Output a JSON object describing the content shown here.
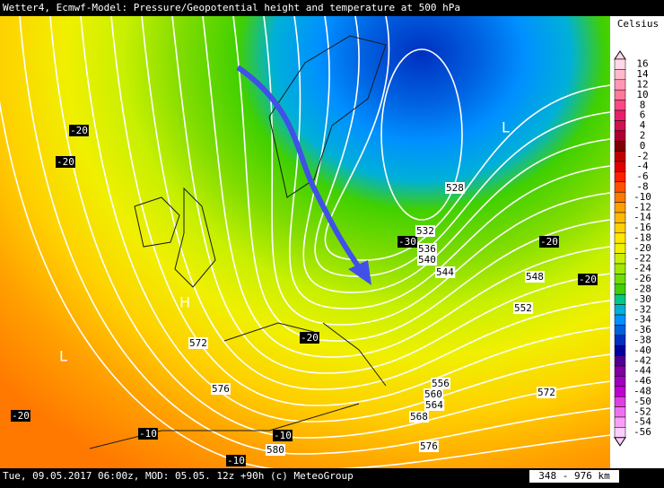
{
  "header": {
    "title": "Wetter4, Ecmwf-Model: Pressure/Geopotential height and temperature at 500 hPa"
  },
  "legend": {
    "title": "Celsius",
    "entries": [
      {
        "label": 16,
        "color": "#ffd8e8"
      },
      {
        "label": 14,
        "color": "#ffb8cc"
      },
      {
        "label": 12,
        "color": "#ff98b4"
      },
      {
        "label": 10,
        "color": "#ff789c"
      },
      {
        "label": 8,
        "color": "#ff4884"
      },
      {
        "label": 6,
        "color": "#e8206a"
      },
      {
        "label": 4,
        "color": "#d01050"
      },
      {
        "label": 2,
        "color": "#b00030"
      },
      {
        "label": 0,
        "color": "#800000"
      },
      {
        "label": -2,
        "color": "#c00000"
      },
      {
        "label": -4,
        "color": "#e00000"
      },
      {
        "label": -6,
        "color": "#ff2000"
      },
      {
        "label": -8,
        "color": "#ff5000"
      },
      {
        "label": -10,
        "color": "#ff7800"
      },
      {
        "label": -12,
        "color": "#ffa000"
      },
      {
        "label": -14,
        "color": "#ffb800"
      },
      {
        "label": -16,
        "color": "#ffd000"
      },
      {
        "label": -18,
        "color": "#ffe800"
      },
      {
        "label": -20,
        "color": "#f0f000"
      },
      {
        "label": -22,
        "color": "#c8f000"
      },
      {
        "label": -24,
        "color": "#a0e800"
      },
      {
        "label": -26,
        "color": "#70dc00"
      },
      {
        "label": -28,
        "color": "#40d000"
      },
      {
        "label": -30,
        "color": "#00c880"
      },
      {
        "label": -32,
        "color": "#00b0d8"
      },
      {
        "label": -34,
        "color": "#0090ff"
      },
      {
        "label": -36,
        "color": "#0060e0"
      },
      {
        "label": -38,
        "color": "#0030c0"
      },
      {
        "label": -40,
        "color": "#0000a0"
      },
      {
        "label": -42,
        "color": "#500090"
      },
      {
        "label": -44,
        "color": "#8000a0"
      },
      {
        "label": -46,
        "color": "#a000c0"
      },
      {
        "label": -48,
        "color": "#c000d0"
      },
      {
        "label": -50,
        "color": "#e040e0"
      },
      {
        "label": -52,
        "color": "#f070f0"
      },
      {
        "label": -54,
        "color": "#f8a0f8"
      },
      {
        "label": -56,
        "color": "#fcd0fc"
      }
    ]
  },
  "map": {
    "temperature_labels": [
      -20,
      -20,
      -20,
      -30,
      -20,
      -20,
      -20,
      -20,
      -10,
      -10,
      -10
    ],
    "height_labels": [
      528,
      532,
      536,
      540,
      544,
      548,
      552,
      572,
      576,
      556,
      560,
      564,
      568,
      580,
      576,
      572
    ],
    "markers": [
      "H",
      "L",
      "L"
    ]
  },
  "footer": {
    "timestamp": "Tue, 09.05.2017 06:00z, MOD: 05.05. 12z +90h (c) MeteoGroup",
    "scale": "348 - 976 km"
  }
}
